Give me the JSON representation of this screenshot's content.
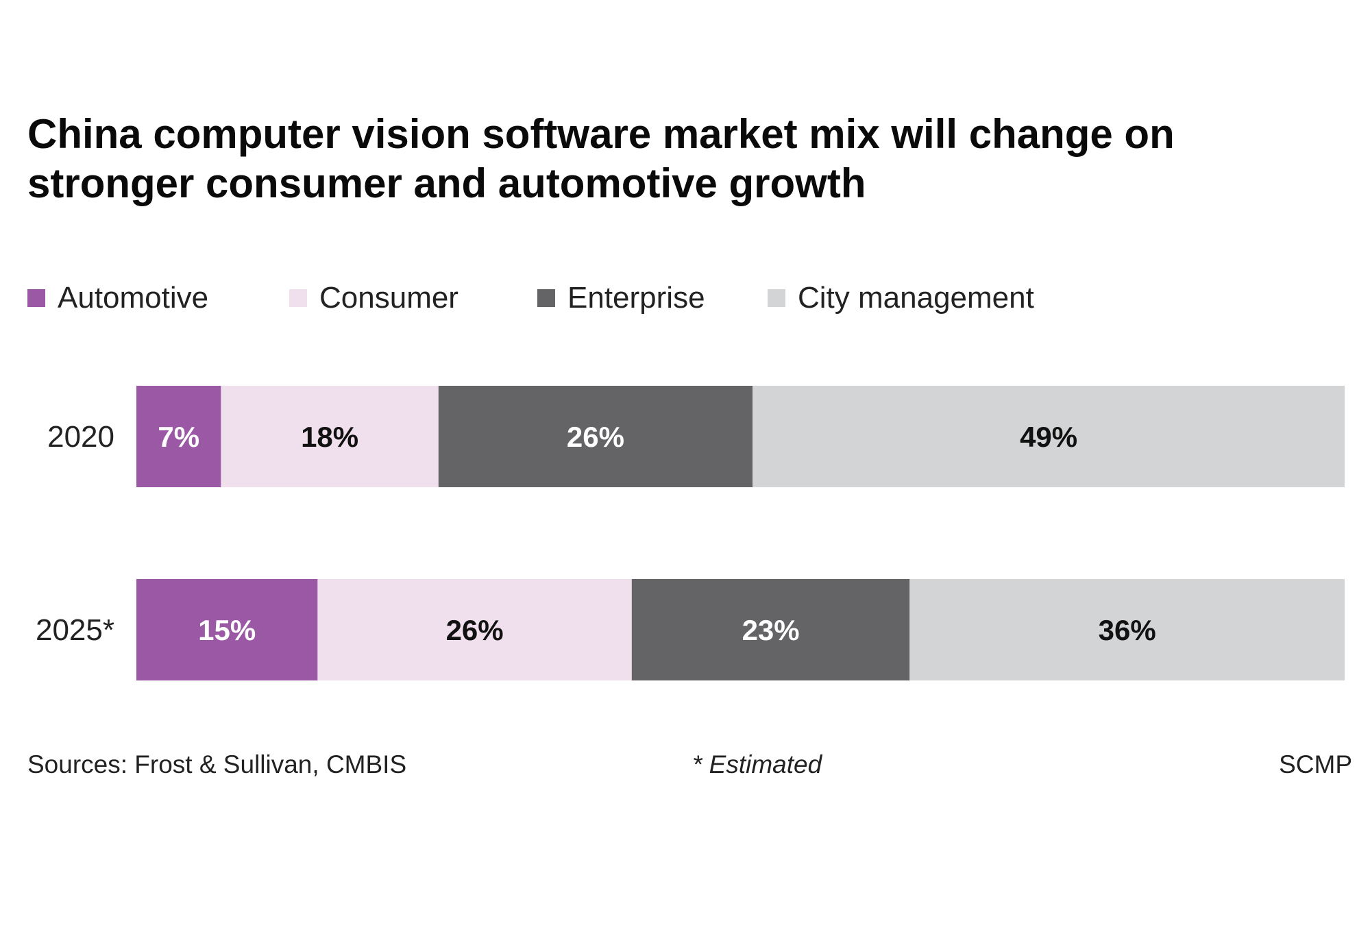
{
  "title": "China computer vision software market mix will change on stronger consumer and automotive growth",
  "legend": [
    {
      "label": "Automotive",
      "color": "#9b59a5"
    },
    {
      "label": "Consumer",
      "color": "#f0dfec"
    },
    {
      "label": "Enterprise",
      "color": "#646466"
    },
    {
      "label": "City management",
      "color": "#d3d4d6"
    }
  ],
  "footer": {
    "sources": "Sources: Frost & Sullivan, CMBIS",
    "note": "* Estimated",
    "credit": "SCMP"
  },
  "chart_data": {
    "type": "bar",
    "orientation": "horizontal",
    "stacked": true,
    "unit": "%",
    "title": "China computer vision software market mix will change on stronger consumer and automotive growth",
    "categories": [
      "2020",
      "2025*"
    ],
    "series": [
      {
        "name": "Automotive",
        "values": [
          7,
          15
        ],
        "labels": [
          "7%",
          "15%"
        ],
        "color": "#9b59a5",
        "label_color": "#ffffff"
      },
      {
        "name": "Consumer",
        "values": [
          18,
          26
        ],
        "labels": [
          "18%",
          "26%"
        ],
        "color": "#f0dfec",
        "label_color": "#111111"
      },
      {
        "name": "Enterprise",
        "values": [
          26,
          23
        ],
        "labels": [
          "26%",
          "23%"
        ],
        "color": "#646466",
        "label_color": "#ffffff"
      },
      {
        "name": "City management",
        "values": [
          49,
          36
        ],
        "labels": [
          "49%",
          "36%"
        ],
        "color": "#d3d4d6",
        "label_color": "#111111"
      }
    ],
    "xlim": [
      0,
      100
    ],
    "legend_position": "top-left",
    "grid": false
  }
}
